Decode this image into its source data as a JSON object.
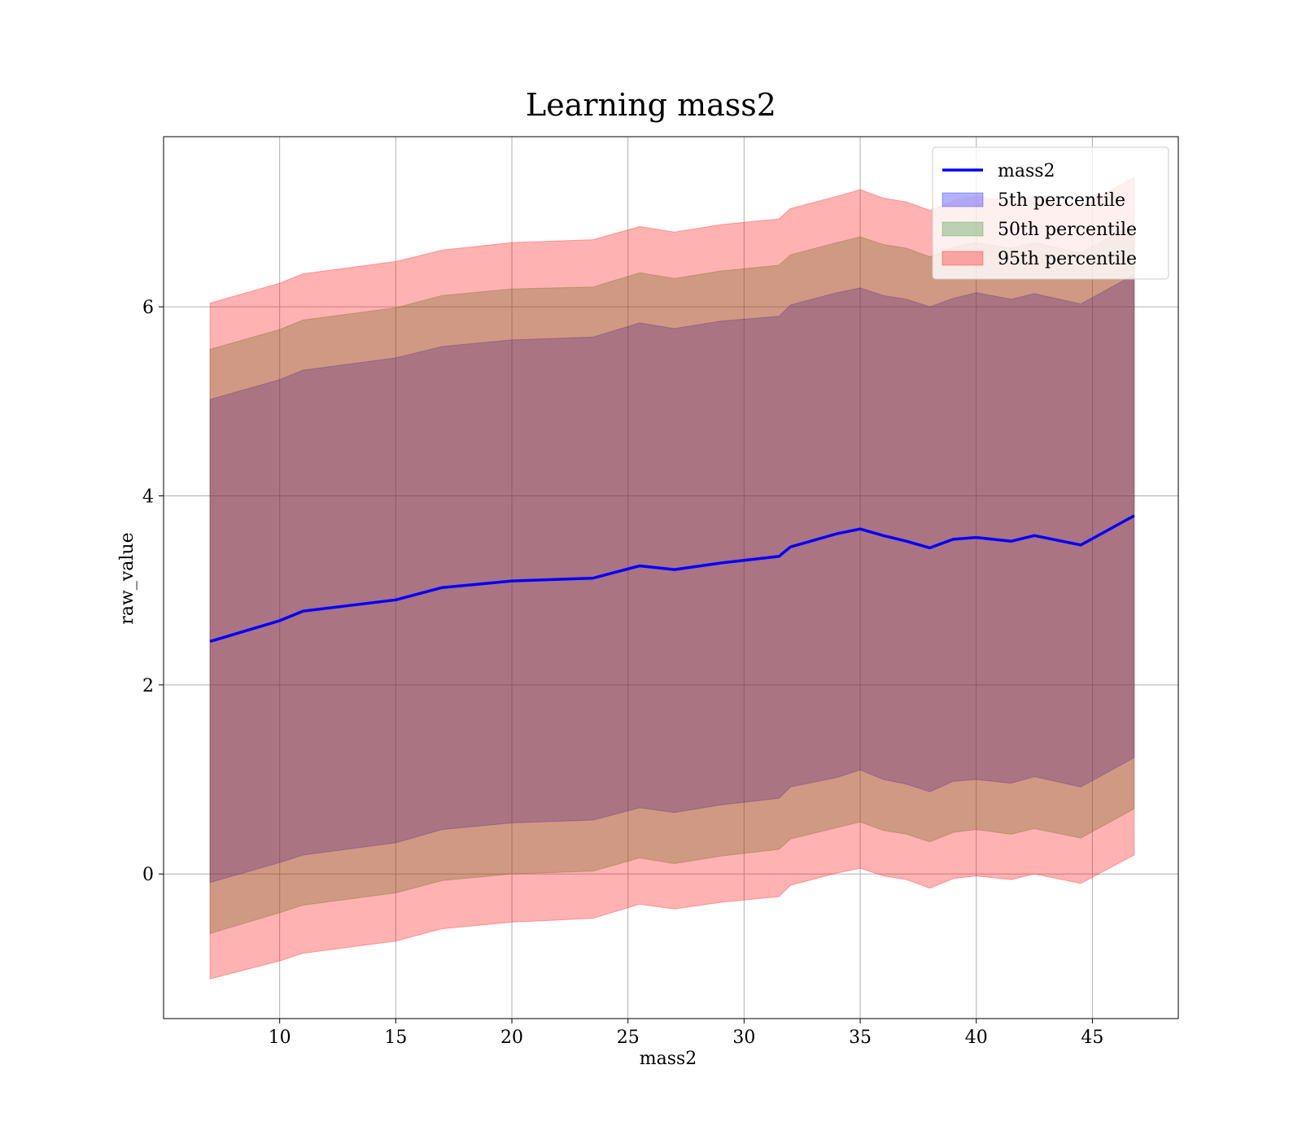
{
  "chart_data": {
    "type": "area",
    "title": "Learning mass2",
    "xlabel": "mass2",
    "ylabel": "raw_value",
    "xlim": [
      5.0,
      48.7
    ],
    "ylim": [
      -1.53,
      7.8
    ],
    "xticks": [
      10,
      15,
      20,
      25,
      30,
      35,
      40,
      45
    ],
    "yticks": [
      0,
      2,
      4,
      6
    ],
    "grid": true,
    "legend_position": "top-right",
    "x": [
      7,
      10,
      11,
      15,
      17,
      20,
      23.5,
      25.5,
      27,
      29,
      31.5,
      32,
      34,
      35,
      36,
      37,
      38,
      39,
      40,
      41.5,
      42.5,
      44.5,
      46.8
    ],
    "series": [
      {
        "name": "mass2",
        "kind": "line",
        "color": "#0000ff",
        "values": [
          2.46,
          2.68,
          2.78,
          2.9,
          3.03,
          3.1,
          3.13,
          3.26,
          3.22,
          3.29,
          3.36,
          3.46,
          3.6,
          3.65,
          3.58,
          3.52,
          3.45,
          3.54,
          3.56,
          3.52,
          3.58,
          3.48,
          3.79
        ]
      },
      {
        "name": "5th percentile",
        "kind": "band",
        "color": "#0000ff",
        "opacity": 0.3,
        "lower": [
          -0.09,
          0.12,
          0.2,
          0.33,
          0.47,
          0.54,
          0.57,
          0.7,
          0.65,
          0.73,
          0.8,
          0.92,
          1.02,
          1.1,
          1.0,
          0.95,
          0.87,
          0.98,
          1.0,
          0.96,
          1.03,
          0.92,
          1.23
        ],
        "upper": [
          5.02,
          5.23,
          5.33,
          5.46,
          5.58,
          5.65,
          5.68,
          5.83,
          5.77,
          5.85,
          5.9,
          6.02,
          6.15,
          6.2,
          6.12,
          6.08,
          6.0,
          6.09,
          6.15,
          6.08,
          6.14,
          6.03,
          6.34
        ]
      },
      {
        "name": "50th percentile",
        "kind": "band",
        "color": "#228b22",
        "opacity": 0.3,
        "lower": [
          -0.63,
          -0.41,
          -0.33,
          -0.2,
          -0.07,
          0.0,
          0.03,
          0.17,
          0.11,
          0.19,
          0.26,
          0.37,
          0.49,
          0.55,
          0.46,
          0.42,
          0.34,
          0.44,
          0.47,
          0.42,
          0.48,
          0.38,
          0.69
        ],
        "upper": [
          5.55,
          5.76,
          5.86,
          5.99,
          6.12,
          6.19,
          6.21,
          6.36,
          6.3,
          6.38,
          6.44,
          6.55,
          6.68,
          6.74,
          6.66,
          6.62,
          6.53,
          6.63,
          6.68,
          6.62,
          6.68,
          6.57,
          6.88
        ]
      },
      {
        "name": "95th percentile",
        "kind": "band",
        "color": "#ff0000",
        "opacity": 0.3,
        "lower": [
          -1.11,
          -0.92,
          -0.84,
          -0.71,
          -0.58,
          -0.51,
          -0.47,
          -0.32,
          -0.37,
          -0.3,
          -0.24,
          -0.12,
          0.01,
          0.06,
          -0.02,
          -0.06,
          -0.15,
          -0.05,
          -0.02,
          -0.06,
          0.0,
          -0.1,
          0.2
        ],
        "upper": [
          6.04,
          6.25,
          6.35,
          6.48,
          6.6,
          6.68,
          6.71,
          6.85,
          6.79,
          6.87,
          6.93,
          7.04,
          7.17,
          7.24,
          7.15,
          7.11,
          7.02,
          7.12,
          7.17,
          7.11,
          7.17,
          7.06,
          7.37
        ]
      }
    ]
  }
}
